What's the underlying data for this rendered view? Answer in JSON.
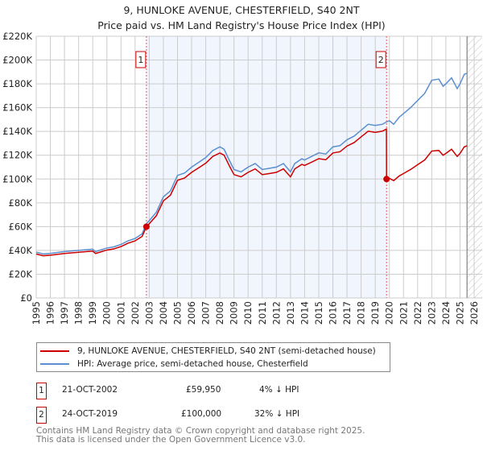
{
  "chart_data": {
    "type": "line",
    "title": "9, HUNLOKE AVENUE, CHESTERFIELD, S40 2NT",
    "subtitle": "Price paid vs. HM Land Registry's House Price Index (HPI)",
    "xlim": [
      1995,
      2026
    ],
    "ylim": [
      0,
      220000
    ],
    "x_ticks": [
      "1995",
      "1996",
      "1997",
      "1998",
      "1999",
      "2000",
      "2001",
      "2002",
      "2003",
      "2004",
      "2005",
      "2006",
      "2007",
      "2008",
      "2009",
      "2010",
      "2011",
      "2012",
      "2013",
      "2014",
      "2015",
      "2016",
      "2017",
      "2018",
      "2019",
      "2020",
      "2021",
      "2022",
      "2023",
      "2024",
      "2025",
      "2026"
    ],
    "y_ticks": [
      {
        "v": 0,
        "label": "£0"
      },
      {
        "v": 20000,
        "label": "£20K"
      },
      {
        "v": 40000,
        "label": "£40K"
      },
      {
        "v": 60000,
        "label": "£60K"
      },
      {
        "v": 80000,
        "label": "£80K"
      },
      {
        "v": 100000,
        "label": "£100K"
      },
      {
        "v": 120000,
        "label": "£120K"
      },
      {
        "v": 140000,
        "label": "£140K"
      },
      {
        "v": 160000,
        "label": "£160K"
      },
      {
        "v": 180000,
        "label": "£180K"
      },
      {
        "v": 200000,
        "label": "£200K"
      },
      {
        "v": 220000,
        "label": "£220K"
      }
    ],
    "grid": true,
    "forecast_from": 2025.5,
    "series": [
      {
        "name": "9, HUNLOKE AVENUE, CHESTERFIELD, S40 2NT (semi-detached house)",
        "color": "#cc0000",
        "x": [
          1995,
          1995.5,
          1996,
          1997,
          1998,
          1999,
          1999.2,
          2000,
          2000.5,
          2001,
          2001.5,
          2002,
          2002.5,
          2002.8,
          2003,
          2003.5,
          2004,
          2004.5,
          2005,
          2005.5,
          2006,
          2006.5,
          2007,
          2007.5,
          2008,
          2008.3,
          2008.7,
          2009,
          2009.5,
          2010,
          2010.5,
          2011,
          2011.5,
          2012,
          2012.5,
          2013,
          2013.3,
          2013.8,
          2014,
          2014.5,
          2015,
          2015.5,
          2016,
          2016.5,
          2017,
          2017.5,
          2018,
          2018.5,
          2019,
          2019.5,
          2019.79,
          2019.8,
          2020,
          2020.3,
          2020.7,
          2021,
          2021.5,
          2022,
          2022.5,
          2023,
          2023.5,
          2023.8,
          2024,
          2024.4,
          2024.8,
          2025,
          2025.3,
          2025.5
        ],
        "y": [
          37000,
          35500,
          36000,
          37400,
          38400,
          39400,
          37400,
          40300,
          41300,
          43200,
          46100,
          48000,
          51800,
          59950,
          62400,
          69100,
          81600,
          86400,
          98900,
          100800,
          105600,
          109400,
          113300,
          119000,
          121900,
          120000,
          110400,
          103700,
          101800,
          105600,
          108500,
          103700,
          104600,
          105600,
          108500,
          101800,
          108500,
          112300,
          111400,
          114200,
          117100,
          116200,
          121900,
          122900,
          127700,
          130600,
          135400,
          140200,
          139200,
          140200,
          142000,
          100000,
          100600,
          98600,
          102600,
          104600,
          108000,
          112000,
          116000,
          123500,
          124000,
          120000,
          121500,
          125000,
          119000,
          121500,
          127000,
          128000
        ]
      },
      {
        "name": "HPI: Average price, semi-detached house, Chesterfield",
        "color": "#5b8fd0",
        "x": [
          1995,
          1995.5,
          1996,
          1997,
          1998,
          1999,
          1999.2,
          2000,
          2000.5,
          2001,
          2001.5,
          2002,
          2002.5,
          2002.8,
          2003,
          2003.5,
          2004,
          2004.5,
          2005,
          2005.5,
          2006,
          2006.5,
          2007,
          2007.5,
          2008,
          2008.3,
          2008.7,
          2009,
          2009.5,
          2010,
          2010.5,
          2011,
          2011.5,
          2012,
          2012.5,
          2013,
          2013.3,
          2013.8,
          2014,
          2014.5,
          2015,
          2015.5,
          2016,
          2016.5,
          2017,
          2017.5,
          2018,
          2018.5,
          2019,
          2019.5,
          2019.8,
          2020,
          2020.3,
          2020.7,
          2021,
          2021.5,
          2022,
          2022.5,
          2023,
          2023.5,
          2023.8,
          2024,
          2024.4,
          2024.8,
          2025,
          2025.3,
          2025.5
        ],
        "y": [
          38500,
          37000,
          37500,
          39000,
          40000,
          41000,
          39000,
          42000,
          43000,
          45000,
          48000,
          50000,
          54000,
          62500,
          65000,
          72000,
          85000,
          90000,
          103000,
          105000,
          110000,
          114000,
          118000,
          124000,
          127000,
          125000,
          115000,
          108000,
          106000,
          110000,
          113000,
          108000,
          109000,
          110000,
          113000,
          106000,
          113000,
          117000,
          116000,
          119000,
          122000,
          121000,
          127000,
          128000,
          133000,
          136000,
          141000,
          146000,
          145000,
          146000,
          148000,
          149000,
          146000,
          152000,
          155000,
          160000,
          166000,
          172000,
          183000,
          184000,
          178000,
          180000,
          185000,
          176000,
          180000,
          188000,
          189000
        ]
      }
    ],
    "sales": [
      {
        "num": "1",
        "x": 2002.8,
        "price": 59950,
        "date": "21-OCT-2002",
        "price_label": "£59,950",
        "hpi_diff": "4% ↓ HPI"
      },
      {
        "num": "2",
        "x": 2019.8,
        "price": 100000,
        "date": "24-OCT-2019",
        "price_label": "£100,000",
        "hpi_diff": "32% ↓ HPI"
      }
    ]
  },
  "footer": {
    "line1": "Contains HM Land Registry data © Crown copyright and database right 2025.",
    "line2": "This data is licensed under the Open Government Licence v3.0."
  }
}
